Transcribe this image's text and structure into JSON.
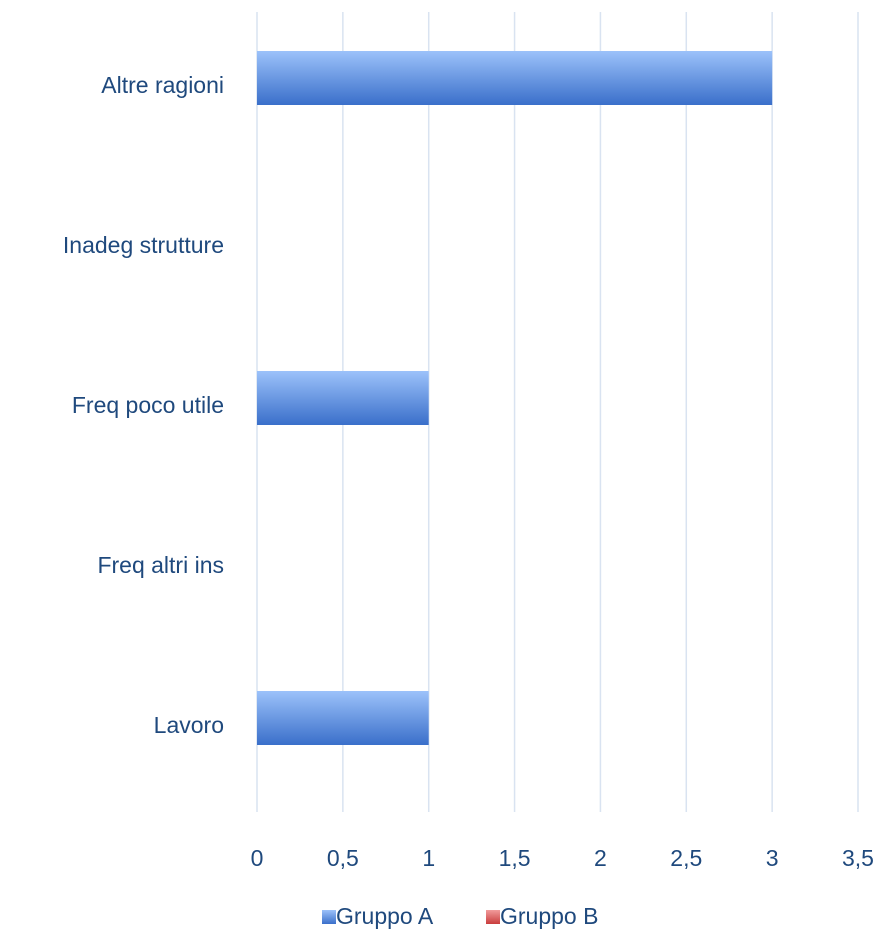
{
  "chart_data": {
    "type": "bar",
    "orientation": "horizontal",
    "categories": [
      "Lavoro",
      "Freq altri ins",
      "Freq poco utile",
      "Inadeg strutture",
      "Altre ragioni"
    ],
    "series": [
      {
        "name": "Gruppo A",
        "values": [
          1,
          0,
          1,
          0,
          3
        ],
        "color": "#5b8fe0"
      },
      {
        "name": "Gruppo B",
        "values": [
          0,
          0,
          0,
          0,
          0
        ],
        "color": "#e05c5c"
      }
    ],
    "xlim": [
      0,
      3.5
    ],
    "xticks": [
      0,
      0.5,
      1,
      1.5,
      2,
      2.5,
      3,
      3.5
    ],
    "xtick_labels": [
      "0",
      "0,5",
      "1",
      "1,5",
      "2",
      "2,5",
      "3",
      "3,5"
    ],
    "grid": true,
    "legend_position": "bottom",
    "text_color": "#1f497d",
    "grid_color": "#d9e3f1"
  }
}
